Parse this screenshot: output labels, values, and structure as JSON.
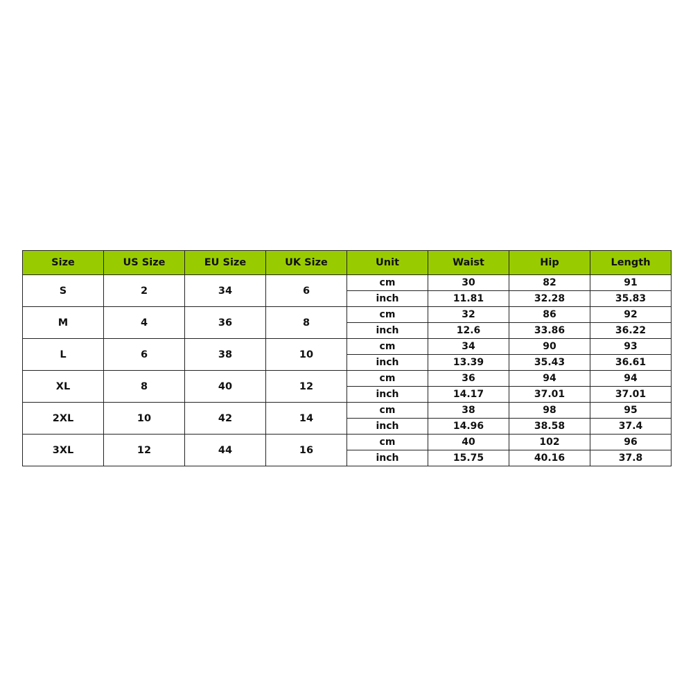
{
  "accent_color": "#99cc00",
  "headers": [
    "Size",
    "US Size",
    "EU Size",
    "UK Size",
    "Unit",
    "Waist",
    "Hip",
    "Length"
  ],
  "rows": [
    {
      "size": "S",
      "us": "2",
      "eu": "34",
      "uk": "6",
      "cm": {
        "unit": "cm",
        "waist": "30",
        "hip": "82",
        "length": "91"
      },
      "inch": {
        "unit": "inch",
        "waist": "11.81",
        "hip": "32.28",
        "length": "35.83"
      }
    },
    {
      "size": "M",
      "us": "4",
      "eu": "36",
      "uk": "8",
      "cm": {
        "unit": "cm",
        "waist": "32",
        "hip": "86",
        "length": "92"
      },
      "inch": {
        "unit": "inch",
        "waist": "12.6",
        "hip": "33.86",
        "length": "36.22"
      }
    },
    {
      "size": "L",
      "us": "6",
      "eu": "38",
      "uk": "10",
      "cm": {
        "unit": "cm",
        "waist": "34",
        "hip": "90",
        "length": "93"
      },
      "inch": {
        "unit": "inch",
        "waist": "13.39",
        "hip": "35.43",
        "length": "36.61"
      }
    },
    {
      "size": "XL",
      "us": "8",
      "eu": "40",
      "uk": "12",
      "cm": {
        "unit": "cm",
        "waist": "36",
        "hip": "94",
        "length": "94"
      },
      "inch": {
        "unit": "inch",
        "waist": "14.17",
        "hip": "37.01",
        "length": "37.01"
      }
    },
    {
      "size": "2XL",
      "us": "10",
      "eu": "42",
      "uk": "14",
      "cm": {
        "unit": "cm",
        "waist": "38",
        "hip": "98",
        "length": "95"
      },
      "inch": {
        "unit": "inch",
        "waist": "14.96",
        "hip": "38.58",
        "length": "37.4"
      }
    },
    {
      "size": "3XL",
      "us": "12",
      "eu": "44",
      "uk": "16",
      "cm": {
        "unit": "cm",
        "waist": "40",
        "hip": "102",
        "length": "96"
      },
      "inch": {
        "unit": "inch",
        "waist": "15.75",
        "hip": "40.16",
        "length": "37.8"
      }
    }
  ]
}
